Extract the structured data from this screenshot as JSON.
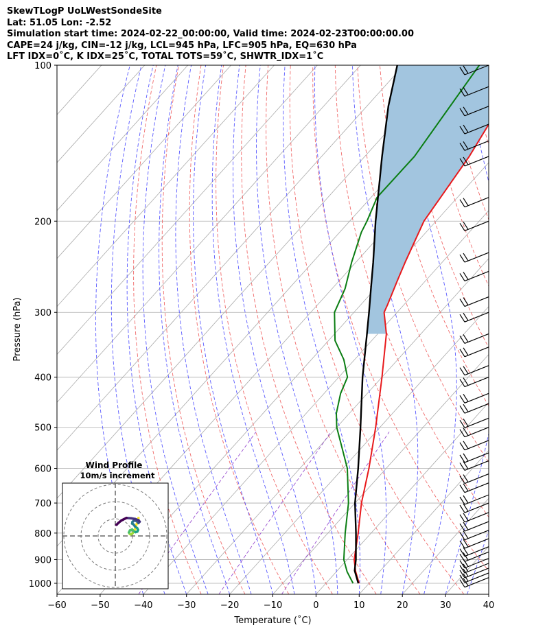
{
  "header": {
    "line1": "SkewTLogP UoLWestSondeSite",
    "line2": "Lat: 51.05   Lon: -2.52",
    "line3": "Simulation start time: 2024-02-22_00:00:00, Valid time: 2024-02-23T00:00:00.00",
    "line4": "CAPE=24 j/kg, CIN=-12 j/kg, LCL=945 hPa, LFC=905 hPa, EQ=630 hPa",
    "line5": "LFT IDX=0˚C, K IDX=25˚C, TOTAL TOTS=59˚C, SHWTR_IDX=1˚C"
  },
  "chart_data": {
    "type": "skewt",
    "xlabel": "Temperature (˚C)",
    "ylabel": "Pressure (hPa)",
    "xlim": [
      -60,
      40
    ],
    "ylim": [
      1050,
      100
    ],
    "x_ticks": [
      -60,
      -50,
      -40,
      -30,
      -20,
      -10,
      0,
      10,
      20,
      30,
      40
    ],
    "x_tick_labels": [
      "−60",
      "−50",
      "−40",
      "−30",
      "−20",
      "−10",
      "0",
      "10",
      "20",
      "30",
      "40"
    ],
    "y_ticks": [
      100,
      200,
      300,
      400,
      500,
      600,
      700,
      800,
      900,
      1000
    ],
    "y_tick_labels": [
      "100",
      "200",
      "300",
      "400",
      "500",
      "600",
      "700",
      "800",
      "900",
      "1000"
    ],
    "colors": {
      "temperature": "#e8191c",
      "dewpoint": "#0a7d12",
      "parcel": "#000000",
      "cape_fill": "#a2c5df",
      "dry_adiabat": "#f06a6a",
      "moist_adiabat": "#5a5aff",
      "mixing_ratio": "#9a4fd0",
      "isotherm": "#aaaaaa"
    },
    "series": [
      {
        "name": "temperature",
        "points": [
          [
            1000,
            7.7
          ],
          [
            950,
            4.5
          ],
          [
            900,
            1.6
          ],
          [
            800,
            -3.0
          ],
          [
            700,
            -8.5
          ],
          [
            600,
            -14.0
          ],
          [
            500,
            -21.0
          ],
          [
            400,
            -30.0
          ],
          [
            330,
            -38.0
          ],
          [
            300,
            -43.0
          ],
          [
            290,
            -43.8
          ],
          [
            260,
            -46.6
          ],
          [
            240,
            -48.6
          ],
          [
            200,
            -52.8
          ],
          [
            150,
            -55.8
          ],
          [
            120,
            -59.2
          ],
          [
            100,
            -60.6
          ]
        ]
      },
      {
        "name": "dewpoint",
        "points": [
          [
            1000,
            6.3
          ],
          [
            950,
            2.5
          ],
          [
            900,
            -0.8
          ],
          [
            800,
            -6.0
          ],
          [
            700,
            -11.5
          ],
          [
            600,
            -19.0
          ],
          [
            500,
            -30.0
          ],
          [
            470,
            -33.0
          ],
          [
            430,
            -36.2
          ],
          [
            400,
            -38.0
          ],
          [
            370,
            -42.5
          ],
          [
            340,
            -48.5
          ],
          [
            300,
            -54.5
          ],
          [
            270,
            -57.0
          ],
          [
            240,
            -61.0
          ],
          [
            210,
            -65.0
          ],
          [
            200,
            -66.0
          ],
          [
            180,
            -68.6
          ],
          [
            150,
            -68.5
          ],
          [
            100,
            -72.5
          ]
        ]
      },
      {
        "name": "parcel",
        "points": [
          [
            1000,
            7.5
          ],
          [
            945,
            4.0
          ],
          [
            900,
            2.0
          ],
          [
            800,
            -3.5
          ],
          [
            700,
            -10.0
          ],
          [
            600,
            -16.5
          ],
          [
            500,
            -24.5
          ],
          [
            400,
            -34.5
          ],
          [
            330,
            -42.5
          ],
          [
            300,
            -46.5
          ],
          [
            270,
            -51.0
          ],
          [
            240,
            -56.0
          ],
          [
            200,
            -64.0
          ],
          [
            150,
            -76.0
          ],
          [
            120,
            -85.0
          ],
          [
            100,
            -91.5
          ]
        ]
      }
    ],
    "wind_barbs": {
      "pressures": [
        975,
        955,
        935,
        915,
        895,
        870,
        850,
        820,
        790,
        760,
        730,
        700,
        675,
        640,
        615,
        580,
        560,
        530,
        500,
        480,
        450,
        430,
        400,
        380,
        350,
        330,
        300,
        280,
        250,
        230,
        200,
        180,
        150,
        140,
        130,
        120,
        110,
        100
      ],
      "direction": "west",
      "speed_class": "10-25 kt"
    },
    "hodograph": {
      "title": "Wind Profile",
      "subtitle": "10m/s increment",
      "ring_spacing_ms": 10,
      "points_uv": [
        [
          13.5,
          10.5
        ],
        [
          13.0,
          8.0
        ],
        [
          12.2,
          6.5
        ],
        [
          11.5,
          4.0
        ],
        [
          10.8,
          2.5
        ],
        [
          10.0,
          1.5
        ],
        [
          9.2,
          0.9
        ],
        [
          8.5,
          1.1
        ],
        [
          7.9,
          2.0
        ],
        [
          8.5,
          3.2
        ],
        [
          9.8,
          3.8
        ],
        [
          10.8,
          2.8
        ],
        [
          11.8,
          2.2
        ],
        [
          12.8,
          2.5
        ],
        [
          13.3,
          3.5
        ],
        [
          12.8,
          4.5
        ],
        [
          11.5,
          5.5
        ],
        [
          10.5,
          6.8
        ],
        [
          9.8,
          7.2
        ],
        [
          10.0,
          8.2
        ],
        [
          10.8,
          8.9
        ],
        [
          11.8,
          8.9
        ],
        [
          12.8,
          8.4
        ],
        [
          13.5,
          7.5
        ],
        [
          14.2,
          8.3
        ],
        [
          13.5,
          9.2
        ],
        [
          11.5,
          9.9
        ],
        [
          9.2,
          10.3
        ],
        [
          6.5,
          10.5
        ],
        [
          3.5,
          9.0
        ],
        [
          1.8,
          7.6
        ],
        [
          0.8,
          6.6
        ],
        [
          0.5,
          6.5
        ]
      ]
    }
  }
}
